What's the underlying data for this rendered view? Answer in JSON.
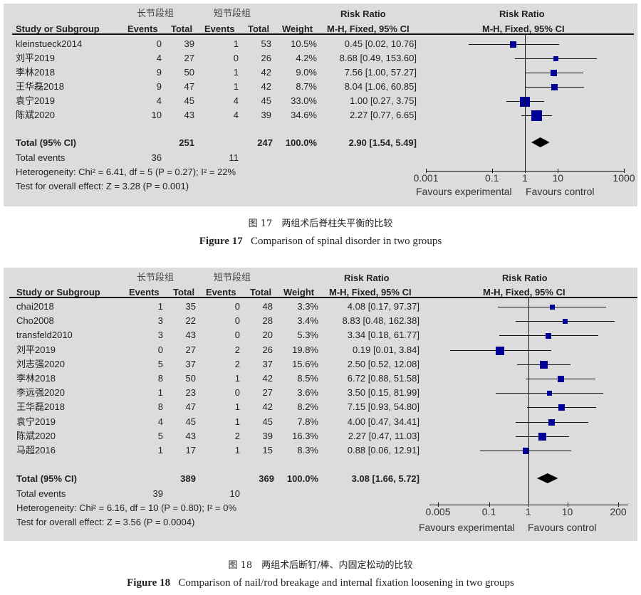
{
  "chart_data": [
    {
      "type": "forest",
      "figure_label": "Figure 17",
      "caption_cn": "图 17　两组术后脊柱失平衡的比较",
      "caption_en_label": "Figure 17",
      "caption_en": "Comparison of spinal disorder in two groups",
      "group_headers": [
        "长节段组",
        "短节段组"
      ],
      "columns": [
        "Study or Subgroup",
        "Events",
        "Total",
        "Events",
        "Total",
        "Weight",
        "M-H, Fixed, 95% CI"
      ],
      "effect_header": "Risk Ratio",
      "effect_subheader": "M-H, Fixed, 95% CI",
      "studies": [
        {
          "name": "kleinstueck2014",
          "e1": "0",
          "n1": "39",
          "e2": "1",
          "n2": "53",
          "weight": "10.5%",
          "ci": "0.45 [0.02, 10.76]",
          "rr": 0.45,
          "lo": 0.02,
          "hi": 10.76,
          "w": 10.5
        },
        {
          "name": "刘平2019",
          "e1": "4",
          "n1": "27",
          "e2": "0",
          "n2": "26",
          "weight": "4.2%",
          "ci": "8.68 [0.49, 153.60]",
          "rr": 8.68,
          "lo": 0.49,
          "hi": 153.6,
          "w": 4.2
        },
        {
          "name": "李林2018",
          "e1": "9",
          "n1": "50",
          "e2": "1",
          "n2": "42",
          "weight": "9.0%",
          "ci": "7.56 [1.00, 57.27]",
          "rr": 7.56,
          "lo": 1.0,
          "hi": 57.27,
          "w": 9.0
        },
        {
          "name": "王华磊2018",
          "e1": "9",
          "n1": "47",
          "e2": "1",
          "n2": "42",
          "weight": "8.7%",
          "ci": "8.04 [1.06, 60.85]",
          "rr": 8.04,
          "lo": 1.06,
          "hi": 60.85,
          "w": 8.7
        },
        {
          "name": "袁宁2019",
          "e1": "4",
          "n1": "45",
          "e2": "4",
          "n2": "45",
          "weight": "33.0%",
          "ci": "1.00 [0.27, 3.75]",
          "rr": 1.0,
          "lo": 0.27,
          "hi": 3.75,
          "w": 33.0
        },
        {
          "name": "陈斌2020",
          "e1": "10",
          "n1": "43",
          "e2": "4",
          "n2": "39",
          "weight": "34.6%",
          "ci": "2.27 [0.77, 6.65]",
          "rr": 2.27,
          "lo": 0.77,
          "hi": 6.65,
          "w": 34.6
        }
      ],
      "total": {
        "label": "Total (95% CI)",
        "n1": "251",
        "n2": "247",
        "weight": "100.0%",
        "ci": "2.90 [1.54, 5.49]",
        "rr": 2.9,
        "lo": 1.54,
        "hi": 5.49
      },
      "total_events": {
        "label": "Total events",
        "e1": "36",
        "e2": "11"
      },
      "heterogeneity": "Heterogeneity: Chi² = 6.41, df = 5 (P = 0.27); I² = 22%",
      "overall_effect": "Test for overall effect: Z = 3.28 (P = 0.001)",
      "xscale": "log",
      "xticks": [
        "0.001",
        "0.1",
        "1",
        "10",
        "1000"
      ],
      "xlim": [
        0.001,
        1000
      ],
      "xlabel_left": "Favours experimental",
      "xlabel_right": "Favours control"
    },
    {
      "type": "forest",
      "figure_label": "Figure 18",
      "caption_cn": "图 18　两组术后断钉/棒、内固定松动的比较",
      "caption_en_label": "Figure 18",
      "caption_en": "Comparison of nail/rod breakage and internal fixation loosening in two groups",
      "group_headers": [
        "长节段组",
        "短节段组"
      ],
      "columns": [
        "Study or Subgroup",
        "Events",
        "Total",
        "Events",
        "Total",
        "Weight",
        "M-H, Fixed, 95% CI"
      ],
      "effect_header": "Risk Ratio",
      "effect_subheader": "M-H, Fixed, 95% CI",
      "studies": [
        {
          "name": "chai2018",
          "e1": "1",
          "n1": "35",
          "e2": "0",
          "n2": "48",
          "weight": "3.3%",
          "ci": "4.08 [0.17, 97.37]",
          "rr": 4.08,
          "lo": 0.17,
          "hi": 97.37,
          "w": 3.3
        },
        {
          "name": "Cho2008",
          "e1": "3",
          "n1": "22",
          "e2": "0",
          "n2": "28",
          "weight": "3.4%",
          "ci": "8.83 [0.48, 162.38]",
          "rr": 8.83,
          "lo": 0.48,
          "hi": 162.38,
          "w": 3.4
        },
        {
          "name": "transfeld2010",
          "e1": "3",
          "n1": "43",
          "e2": "0",
          "n2": "20",
          "weight": "5.3%",
          "ci": "3.34 [0.18, 61.77]",
          "rr": 3.34,
          "lo": 0.18,
          "hi": 61.77,
          "w": 5.3
        },
        {
          "name": "刘平2019",
          "e1": "0",
          "n1": "27",
          "e2": "2",
          "n2": "26",
          "weight": "19.8%",
          "ci": "0.19 [0.01, 3.84]",
          "rr": 0.19,
          "lo": 0.01,
          "hi": 3.84,
          "w": 19.8
        },
        {
          "name": "刘志强2020",
          "e1": "5",
          "n1": "37",
          "e2": "2",
          "n2": "37",
          "weight": "15.6%",
          "ci": "2.50 [0.52, 12.08]",
          "rr": 2.5,
          "lo": 0.52,
          "hi": 12.08,
          "w": 15.6
        },
        {
          "name": "李林2018",
          "e1": "8",
          "n1": "50",
          "e2": "1",
          "n2": "42",
          "weight": "8.5%",
          "ci": "6.72 [0.88, 51.58]",
          "rr": 6.72,
          "lo": 0.88,
          "hi": 51.58,
          "w": 8.5
        },
        {
          "name": "李远强2020",
          "e1": "1",
          "n1": "23",
          "e2": "0",
          "n2": "27",
          "weight": "3.6%",
          "ci": "3.50 [0.15, 81.99]",
          "rr": 3.5,
          "lo": 0.15,
          "hi": 81.99,
          "w": 3.6
        },
        {
          "name": "王华磊2018",
          "e1": "8",
          "n1": "47",
          "e2": "1",
          "n2": "42",
          "weight": "8.2%",
          "ci": "7.15 [0.93, 54.80]",
          "rr": 7.15,
          "lo": 0.93,
          "hi": 54.8,
          "w": 8.2
        },
        {
          "name": "袁宁2019",
          "e1": "4",
          "n1": "45",
          "e2": "1",
          "n2": "45",
          "weight": "7.8%",
          "ci": "4.00 [0.47, 34.41]",
          "rr": 4.0,
          "lo": 0.47,
          "hi": 34.41,
          "w": 7.8
        },
        {
          "name": "陈斌2020",
          "e1": "5",
          "n1": "43",
          "e2": "2",
          "n2": "39",
          "weight": "16.3%",
          "ci": "2.27 [0.47, 11.03]",
          "rr": 2.27,
          "lo": 0.47,
          "hi": 11.03,
          "w": 16.3
        },
        {
          "name": "马超2016",
          "e1": "1",
          "n1": "17",
          "e2": "1",
          "n2": "15",
          "weight": "8.3%",
          "ci": "0.88 [0.06, 12.91]",
          "rr": 0.88,
          "lo": 0.06,
          "hi": 12.91,
          "w": 8.3
        }
      ],
      "total": {
        "label": "Total (95% CI)",
        "n1": "389",
        "n2": "369",
        "weight": "100.0%",
        "ci": "3.08 [1.66, 5.72]",
        "rr": 3.08,
        "lo": 1.66,
        "hi": 5.72
      },
      "total_events": {
        "label": "Total events",
        "e1": "39",
        "e2": "10"
      },
      "heterogeneity": "Heterogeneity: Chi² = 6.16, df = 10 (P = 0.80); I² = 0%",
      "overall_effect": "Test for overall effect: Z = 3.56 (P = 0.0004)",
      "xscale": "log",
      "xticks": [
        "0.005",
        "0.1",
        "1",
        "10",
        "200"
      ],
      "xlim": [
        0.005,
        200
      ],
      "xlabel_left": "Favours experimental",
      "xlabel_right": "Favours control"
    }
  ],
  "colors": {
    "panel_bg": "#dcdcdc",
    "marker": "#000099",
    "line": "#111111"
  }
}
